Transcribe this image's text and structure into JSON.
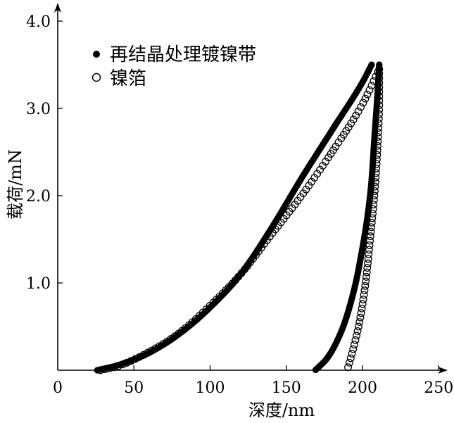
{
  "chart_data": {
    "type": "scatter",
    "title": "",
    "xlabel": "深度/nm",
    "ylabel": "载荷/mN",
    "xlim": [
      0,
      250
    ],
    "ylim": [
      0,
      4.0
    ],
    "x_ticks": [
      "0",
      "50",
      "100",
      "150",
      "200",
      "250"
    ],
    "y_ticks": [
      "1.0",
      "2.0",
      "3.0",
      "4.0"
    ],
    "legend_position": "top-left",
    "series": [
      {
        "name": "再结晶处理镀镍带",
        "marker": "filled-circle",
        "color": "#000000",
        "loading": [
          [
            26,
            0
          ],
          [
            40,
            0.06
          ],
          [
            60,
            0.2
          ],
          [
            80,
            0.42
          ],
          [
            100,
            0.72
          ],
          [
            120,
            1.1
          ],
          [
            140,
            1.62
          ],
          [
            160,
            2.2
          ],
          [
            180,
            2.75
          ],
          [
            200,
            3.3
          ],
          [
            206,
            3.5
          ]
        ],
        "hold": [
          [
            206,
            3.5
          ],
          [
            211,
            3.5
          ]
        ],
        "unloading": [
          [
            211,
            3.5
          ],
          [
            210,
            3.2
          ],
          [
            208,
            2.7
          ],
          [
            205,
            2.0
          ],
          [
            200,
            1.4
          ],
          [
            193,
            0.82
          ],
          [
            185,
            0.4
          ],
          [
            176,
            0.12
          ],
          [
            169,
            0
          ]
        ]
      },
      {
        "name": "镍箔",
        "marker": "open-circle",
        "color": "#000000",
        "loading": [
          [
            28,
            0
          ],
          [
            40,
            0.05
          ],
          [
            60,
            0.21
          ],
          [
            80,
            0.43
          ],
          [
            100,
            0.74
          ],
          [
            120,
            1.1
          ],
          [
            140,
            1.55
          ],
          [
            160,
            2.0
          ],
          [
            180,
            2.5
          ],
          [
            200,
            3.05
          ],
          [
            211,
            3.45
          ]
        ],
        "hold": [],
        "unloading": [
          [
            211,
            3.45
          ],
          [
            211,
            3.1
          ],
          [
            210,
            2.6
          ],
          [
            208,
            2.05
          ],
          [
            205,
            1.5
          ],
          [
            202,
            1.0
          ],
          [
            198,
            0.55
          ],
          [
            194,
            0.25
          ],
          [
            190,
            0
          ]
        ]
      }
    ]
  }
}
